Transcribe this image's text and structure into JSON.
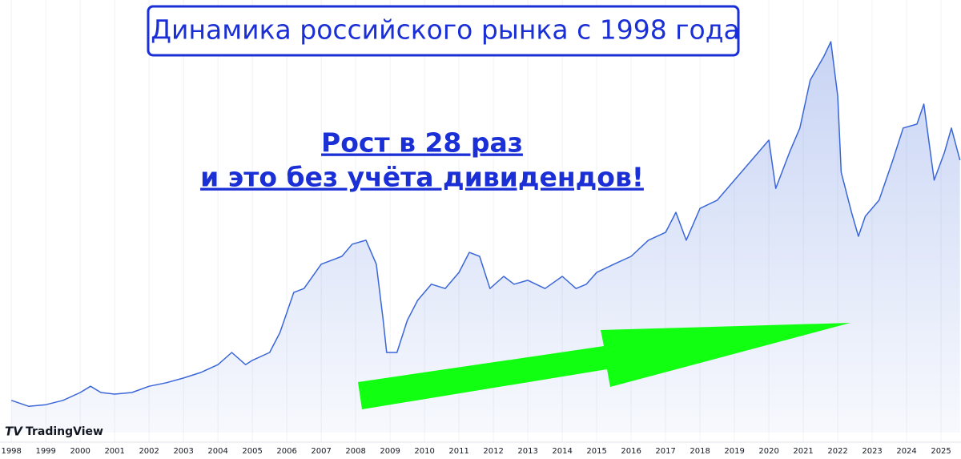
{
  "chart_data": {
    "type": "line",
    "title": "Динамика российского рынка с 1998 года",
    "annotations": [
      "Рост в 28 раз",
      "и это без учёта дивидендов!"
    ],
    "source": "TradingView",
    "color": "#3a66d8",
    "x": [
      1998.0,
      1998.5,
      1999.0,
      1999.5,
      2000.0,
      2000.3,
      2000.6,
      2001.0,
      2001.5,
      2002.0,
      2002.5,
      2003.0,
      2003.5,
      2004.0,
      2004.4,
      2004.8,
      2005.0,
      2005.5,
      2005.8,
      2006.2,
      2006.5,
      2007.0,
      2007.3,
      2007.6,
      2007.9,
      2008.3,
      2008.6,
      2008.8,
      2008.9,
      2009.2,
      2009.5,
      2009.8,
      2010.2,
      2010.6,
      2011.0,
      2011.3,
      2011.6,
      2011.9,
      2012.3,
      2012.6,
      2013.0,
      2013.5,
      2014.0,
      2014.4,
      2014.7,
      2015.0,
      2015.5,
      2016.0,
      2016.5,
      2017.0,
      2017.3,
      2017.6,
      2018.0,
      2018.5,
      2019.0,
      2019.5,
      2020.0,
      2020.2,
      2020.6,
      2020.9,
      2021.2,
      2021.6,
      2021.8,
      2022.0,
      2022.1,
      2022.4,
      2022.6,
      2022.8,
      2023.2,
      2023.6,
      2023.9,
      2024.3,
      2024.5,
      2024.8,
      2025.1,
      2025.3,
      2025.55
    ],
    "values": [
      8.2,
      6.7,
      7.1,
      8.2,
      10.2,
      11.8,
      10.2,
      9.8,
      10.2,
      11.8,
      12.7,
      13.9,
      15.3,
      17.3,
      20.4,
      17.3,
      18.4,
      20.4,
      25.5,
      35.7,
      36.7,
      42.9,
      43.9,
      44.9,
      48.0,
      49.0,
      42.9,
      28.6,
      20.4,
      20.4,
      28.6,
      33.7,
      37.8,
      36.7,
      40.8,
      45.9,
      44.9,
      36.7,
      39.8,
      37.8,
      38.8,
      36.7,
      39.8,
      36.7,
      37.8,
      40.8,
      42.9,
      44.9,
      49.0,
      51.0,
      56.1,
      49.0,
      57.1,
      59.2,
      64.3,
      69.4,
      74.5,
      62.2,
      71.4,
      77.6,
      89.8,
      95.9,
      99.6,
      85.7,
      66.3,
      56.1,
      50.0,
      55.1,
      59.2,
      69.4,
      77.6,
      78.6,
      83.7,
      64.3,
      71.4,
      77.6,
      69.4
    ],
    "xlim": [
      1997.67,
      2025.58
    ],
    "xticks": [
      1998,
      1999,
      2000,
      2001,
      2002,
      2003,
      2004,
      2005,
      2006,
      2007,
      2008,
      2009,
      2010,
      2011,
      2012,
      2013,
      2014,
      2015,
      2016,
      2017,
      2018,
      2019,
      2020,
      2021,
      2022,
      2023,
      2024,
      2025
    ],
    "ylim": [
      0,
      100
    ],
    "grid": true
  }
}
